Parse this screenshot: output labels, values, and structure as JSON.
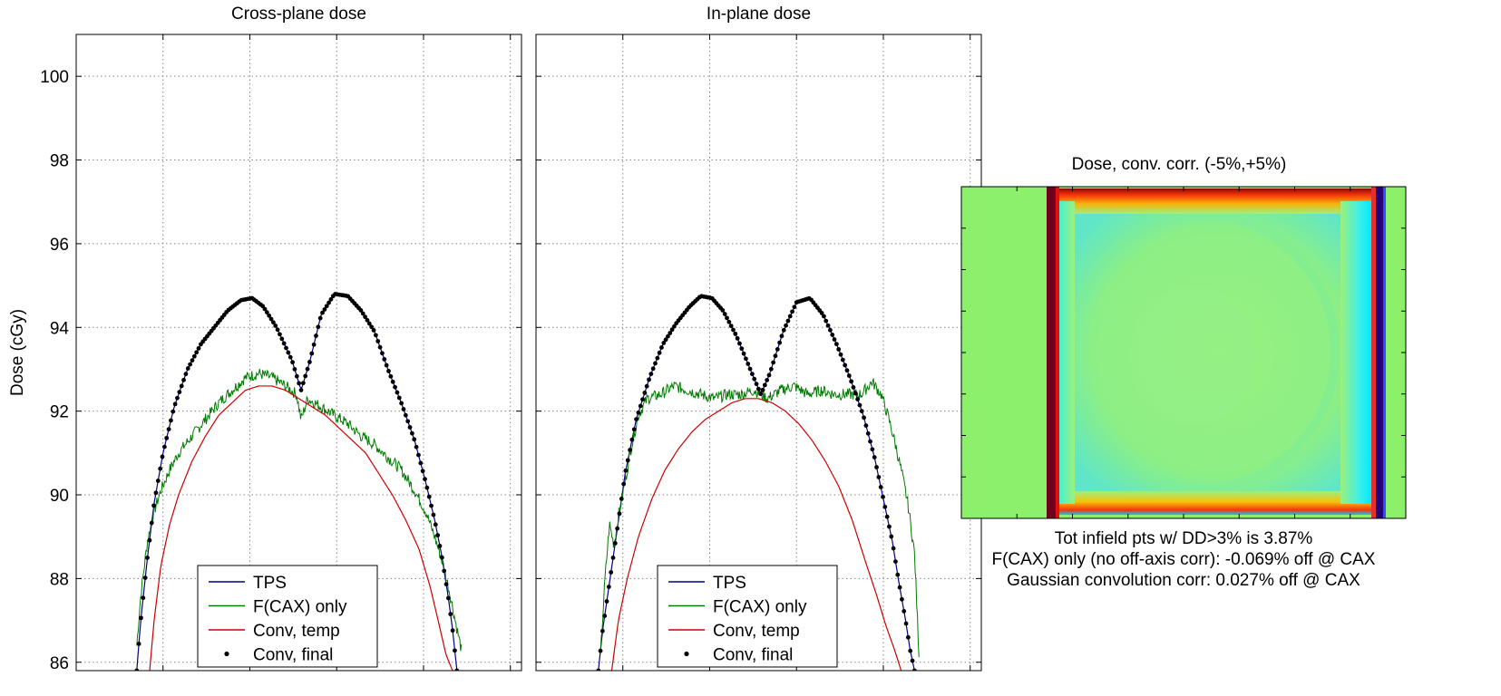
{
  "figure": {
    "ylabel": "Dose (cGy)",
    "yticks": [
      86,
      88,
      90,
      92,
      94,
      96,
      98,
      100
    ],
    "ylim": [
      85.8,
      101
    ]
  },
  "chart_data": [
    {
      "type": "line",
      "title": "Cross-plane dose",
      "ylabel": "Dose (cGy)",
      "ylim": [
        85.8,
        101
      ],
      "xlim": [
        0,
        100
      ],
      "grid": true,
      "legend_position": "bottom-center",
      "legend": [
        "TPS",
        "F(CAX) only",
        "Conv, temp",
        "Conv, final"
      ],
      "series": [
        {
          "name": "TPS",
          "color": "#00008b",
          "style": "line",
          "x": [
            13.6,
            14.5,
            16,
            17.5,
            19.5,
            22,
            25,
            28,
            31,
            34,
            37,
            39.5,
            42,
            45,
            48.5,
            50.5,
            52.5,
            55,
            58,
            61,
            64,
            67,
            70,
            73,
            76,
            78.5,
            80.5,
            82,
            83.5,
            84.5,
            85.5
          ],
          "y": [
            85.8,
            87,
            88.5,
            89.8,
            91.0,
            92.1,
            93.0,
            93.6,
            94.0,
            94.4,
            94.65,
            94.7,
            94.5,
            94.0,
            93.2,
            92.5,
            93.2,
            94.3,
            94.8,
            94.75,
            94.4,
            93.9,
            93.0,
            92.2,
            91.3,
            90.3,
            89.4,
            88.6,
            87.6,
            86.8,
            85.8
          ]
        },
        {
          "name": "F(CAX) only",
          "color": "#007a00",
          "style": "noisy",
          "x": [
            13.6,
            14.5,
            16,
            17.5,
            19,
            21,
            23,
            26,
            29,
            32,
            35,
            38,
            41,
            44,
            47,
            49.5,
            50.5,
            52,
            55,
            58,
            61,
            64,
            67,
            70,
            73,
            76,
            78.5,
            80.5,
            82.5,
            84,
            85.5,
            86.5
          ],
          "y": [
            86.4,
            87.6,
            88.9,
            89.6,
            90.1,
            90.6,
            91.0,
            91.4,
            91.8,
            92.2,
            92.5,
            92.8,
            92.9,
            92.8,
            92.6,
            92.4,
            91.8,
            92.3,
            92.1,
            91.9,
            91.7,
            91.4,
            91.2,
            90.9,
            90.6,
            90.1,
            89.6,
            89.0,
            88.3,
            87.6,
            86.8,
            86.3
          ]
        },
        {
          "name": "Conv, temp",
          "color": "#cc0000",
          "style": "line",
          "x": [
            16.5,
            17.5,
            19,
            21,
            23,
            26,
            29,
            32,
            35,
            38,
            41,
            44,
            47,
            50,
            53,
            56,
            59,
            62,
            65,
            68,
            71,
            74,
            77,
            79.5,
            81.5,
            83,
            84.5
          ],
          "y": [
            85.8,
            87.0,
            88.3,
            89.3,
            90.0,
            90.8,
            91.4,
            91.9,
            92.2,
            92.5,
            92.6,
            92.6,
            92.5,
            92.3,
            92.1,
            91.9,
            91.6,
            91.3,
            91.0,
            90.5,
            90.0,
            89.4,
            88.7,
            87.8,
            86.9,
            86.2,
            85.8
          ]
        },
        {
          "name": "Conv, final",
          "color": "#000000",
          "style": "markers",
          "x": [
            13.6,
            14.5,
            16,
            17.5,
            19.5,
            22,
            25,
            28,
            31,
            34,
            37,
            39.5,
            42,
            45,
            48.5,
            50.5,
            52.5,
            55,
            58,
            61,
            64,
            67,
            70,
            73,
            76,
            78.5,
            80.5,
            82,
            83.5,
            84.5,
            85.5
          ],
          "y": [
            85.8,
            87,
            88.5,
            89.8,
            91.0,
            92.1,
            93.0,
            93.6,
            94.0,
            94.4,
            94.65,
            94.7,
            94.5,
            94.0,
            93.2,
            92.5,
            93.2,
            94.3,
            94.8,
            94.75,
            94.4,
            93.9,
            93.0,
            92.2,
            91.3,
            90.3,
            89.4,
            88.6,
            87.6,
            86.8,
            85.8
          ]
        }
      ]
    },
    {
      "type": "line",
      "title": "In-plane dose",
      "ylabel": "",
      "ylim": [
        85.8,
        101
      ],
      "xlim": [
        0,
        100
      ],
      "grid": true,
      "legend_position": "bottom-center",
      "legend": [
        "TPS",
        "F(CAX) only",
        "Conv, temp",
        "Conv, final"
      ],
      "series": [
        {
          "name": "TPS",
          "color": "#00008b",
          "style": "line",
          "x": [
            14,
            15,
            16.5,
            18,
            20,
            22.5,
            25.5,
            28.5,
            31.5,
            34.5,
            37,
            39.5,
            42,
            45,
            48.5,
            50.5,
            52.5,
            55.5,
            58.5,
            61.5,
            64.5,
            67.5,
            70.5,
            73.5,
            76,
            78,
            80,
            81.5,
            83,
            84,
            85
          ],
          "y": [
            85.8,
            86.8,
            87.9,
            89.0,
            90.5,
            91.8,
            92.8,
            93.6,
            94.1,
            94.5,
            94.75,
            94.7,
            94.4,
            93.8,
            92.9,
            92.4,
            92.9,
            93.9,
            94.6,
            94.7,
            94.3,
            93.6,
            92.8,
            91.9,
            90.9,
            89.9,
            88.9,
            87.9,
            87.0,
            86.3,
            85.8
          ]
        },
        {
          "name": "F(CAX) only",
          "color": "#007a00",
          "style": "noisy",
          "x": [
            14.5,
            15.5,
            16.5,
            17.5,
            18.5,
            20,
            21.5,
            23,
            25,
            28,
            31,
            34,
            37,
            40,
            43,
            46,
            49,
            52,
            55,
            58,
            61,
            64,
            67,
            70,
            73,
            75.5,
            77.5,
            79,
            80.5,
            82,
            83.5,
            85,
            86
          ],
          "y": [
            86.2,
            88.0,
            89.3,
            88.8,
            89.5,
            90.3,
            91.2,
            91.9,
            92.3,
            92.4,
            92.6,
            92.5,
            92.4,
            92.3,
            92.4,
            92.4,
            92.5,
            92.3,
            92.5,
            92.6,
            92.4,
            92.5,
            92.4,
            92.4,
            92.4,
            92.7,
            92.4,
            91.9,
            91.3,
            90.6,
            89.8,
            88.6,
            86.2
          ]
        },
        {
          "name": "Conv, temp",
          "color": "#cc0000",
          "style": "line",
          "x": [
            17,
            18.5,
            20.5,
            23,
            26,
            29,
            32,
            35,
            38,
            41,
            44,
            47,
            50,
            53,
            56,
            59,
            62,
            65,
            68,
            71,
            74,
            76.5,
            78.5,
            80.5,
            82
          ],
          "y": [
            85.8,
            87.0,
            88.0,
            89.0,
            89.9,
            90.6,
            91.1,
            91.5,
            91.8,
            92.0,
            92.2,
            92.3,
            92.3,
            92.2,
            92.0,
            91.7,
            91.3,
            90.8,
            90.2,
            89.4,
            88.4,
            87.6,
            86.9,
            86.3,
            85.8
          ]
        },
        {
          "name": "Conv, final",
          "color": "#000000",
          "style": "markers",
          "x": [
            14,
            15,
            16.5,
            18,
            20,
            22.5,
            25.5,
            28.5,
            31.5,
            34.5,
            37,
            39.5,
            42,
            45,
            48.5,
            50.5,
            52.5,
            55.5,
            58.5,
            61.5,
            64.5,
            67.5,
            70.5,
            73.5,
            76,
            78,
            80,
            81.5,
            83,
            84,
            85
          ],
          "y": [
            85.8,
            86.8,
            87.9,
            89.0,
            90.5,
            91.8,
            92.8,
            93.6,
            94.1,
            94.5,
            94.75,
            94.7,
            94.4,
            93.8,
            92.9,
            92.4,
            92.9,
            93.9,
            94.6,
            94.7,
            94.3,
            93.6,
            92.8,
            91.9,
            90.9,
            89.9,
            88.9,
            87.9,
            87.0,
            86.3,
            85.8
          ]
        }
      ]
    },
    {
      "type": "heatmap",
      "title": "Dose, conv. corr. (-5%,+5%)",
      "colormap": "jet",
      "range": [
        "-5%",
        "+5%"
      ],
      "colors": {
        "background": "#8cf06a",
        "field": "#9ef07a",
        "edge_hot": "#ff2a00",
        "edge_warm": "#ffb000",
        "edge_cool": "#00e8ff",
        "border_dark": "#70001e",
        "mid_cyan": "#5fe6c8"
      }
    }
  ],
  "stats": {
    "line1": "Tot infield pts w/ DD>3% is 3.87%",
    "line2": "F(CAX) only (no off-axis corr): -0.069% off @ CAX",
    "line3": "Gaussian convolution corr: 0.027% off @ CAX"
  }
}
